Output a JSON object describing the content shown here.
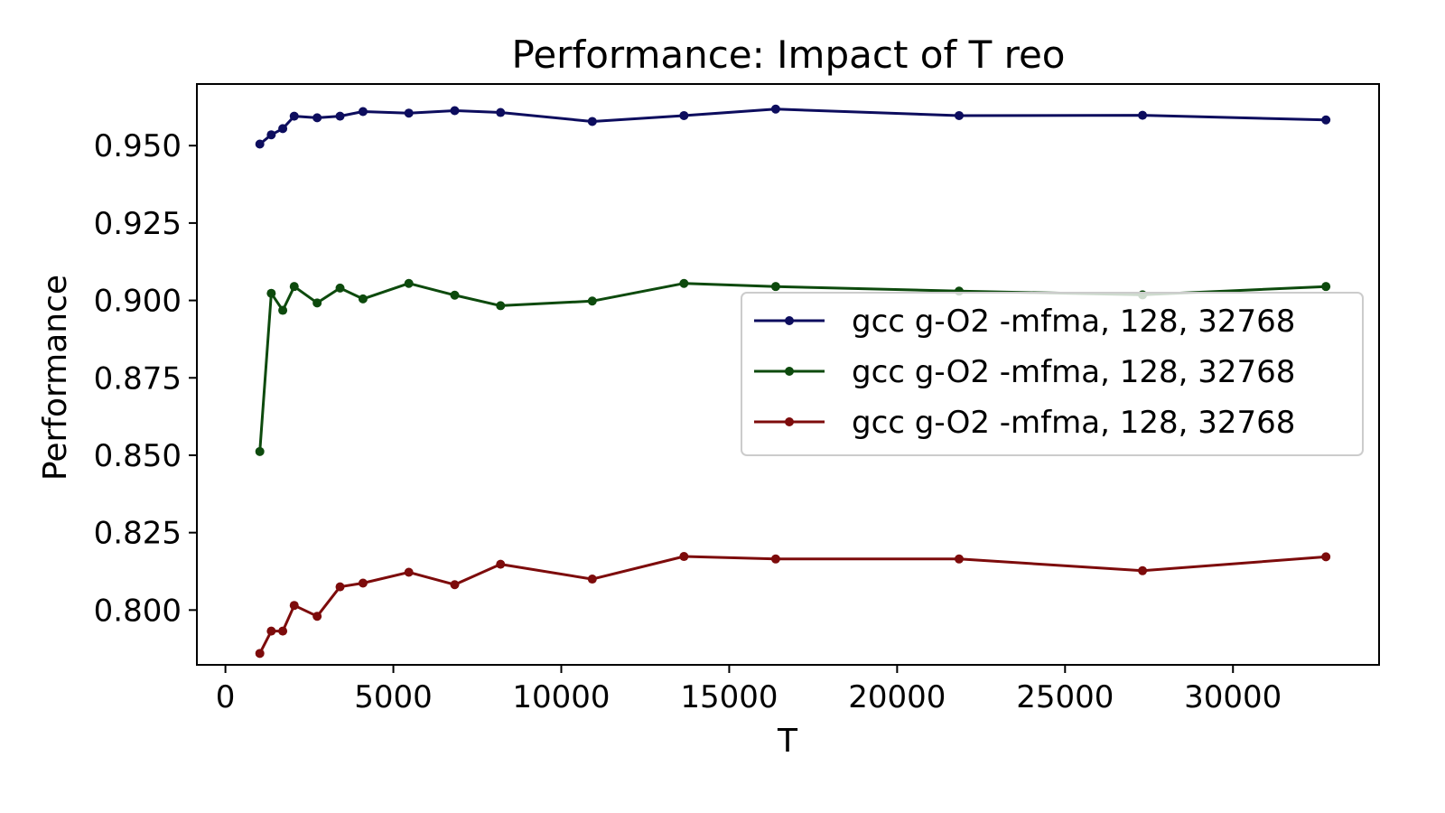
{
  "chart_data": {
    "type": "line",
    "title": "Performance: Impact of T reo",
    "xlabel": "T",
    "ylabel": "Performance",
    "xlim": [
      -850,
      34350
    ],
    "ylim": [
      0.7823,
      0.9699
    ],
    "xticks": [
      0,
      5000,
      10000,
      15000,
      20000,
      25000,
      30000
    ],
    "xtick_labels": [
      "0",
      "5000",
      "10000",
      "15000",
      "20000",
      "25000",
      "30000"
    ],
    "yticks": [
      0.8,
      0.825,
      0.85,
      0.875,
      0.9,
      0.925,
      0.95
    ],
    "ytick_labels": [
      "0.800",
      "0.825",
      "0.850",
      "0.875",
      "0.900",
      "0.925",
      "0.950"
    ],
    "grid": false,
    "legend_position": "center-right",
    "x": [
      1024,
      1365,
      1707,
      2048,
      2731,
      3413,
      4096,
      5461,
      6827,
      8192,
      10923,
      13653,
      16384,
      21845,
      27307,
      32768
    ],
    "series": [
      {
        "name": "gcc g-O2 -mfma, 128, 32768",
        "color": "#0d0d5e",
        "values": [
          0.9505,
          0.9535,
          0.9555,
          0.9595,
          0.959,
          0.9595,
          0.961,
          0.9605,
          0.9613,
          0.9607,
          0.9578,
          0.9597,
          0.9618,
          0.9597,
          0.9598,
          0.9583
        ]
      },
      {
        "name": "gcc g-O2 -mfma, 128, 32768",
        "color": "#0d4a0d",
        "values": [
          0.8512,
          0.9023,
          0.8968,
          0.9045,
          0.8992,
          0.904,
          0.9005,
          0.9055,
          0.9017,
          0.8983,
          0.8998,
          0.9055,
          0.9045,
          0.903,
          0.9018,
          0.9045
        ]
      },
      {
        "name": "gcc g-O2 -mfma, 128, 32768",
        "color": "#7d0b0b",
        "values": [
          0.786,
          0.7932,
          0.7932,
          0.8015,
          0.798,
          0.8075,
          0.8087,
          0.8122,
          0.8082,
          0.8148,
          0.81,
          0.8173,
          0.8165,
          0.8165,
          0.8127,
          0.8172
        ]
      }
    ]
  }
}
